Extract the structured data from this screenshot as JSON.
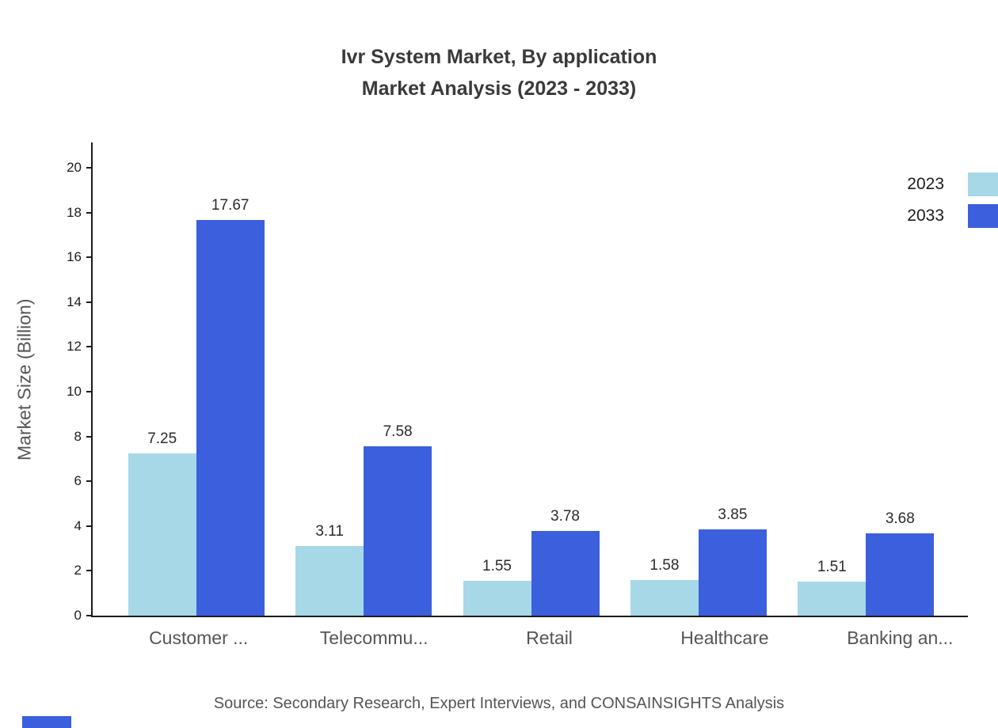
{
  "title": {
    "line1": "Ivr System Market, By application",
    "line2": "Market Analysis (2023 - 2033)"
  },
  "source": "Source: Secondary Research, Expert Interviews, and CONSAINSIGHTS Analysis",
  "colors": {
    "series_2023": "#A6D8E8",
    "series_2033": "#3C5FDD",
    "axis": "#1c1c1c",
    "brand_mark": "#3C5FDD"
  },
  "chart_data": {
    "type": "bar",
    "title": "Ivr System Market, By application Market Analysis (2023 - 2033)",
    "categories": [
      "Customer ...",
      "Telecommu...",
      "Retail",
      "Healthcare",
      "Banking an..."
    ],
    "series": [
      {
        "name": "2023",
        "color": "#A6D8E8",
        "values": [
          7.25,
          3.11,
          1.55,
          1.58,
          1.51
        ]
      },
      {
        "name": "2033",
        "color": "#3C5FDD",
        "values": [
          17.67,
          7.58,
          3.78,
          3.85,
          3.68
        ]
      }
    ],
    "value_labels": {
      "2023": [
        "7.25",
        "3.11",
        "1.55",
        "1.58",
        "1.51"
      ],
      "2033": [
        "17.67",
        "7.58",
        "3.78",
        "3.85",
        "3.68"
      ]
    },
    "xlabel": "",
    "ylabel": "Market Size (Billion)",
    "ylim": [
      0,
      20
    ],
    "yticks": [
      0,
      2,
      4,
      6,
      8,
      10,
      12,
      14,
      16,
      18,
      20
    ],
    "grid": false,
    "legend_position": "top-right",
    "legend": [
      "2023",
      "2033"
    ]
  }
}
